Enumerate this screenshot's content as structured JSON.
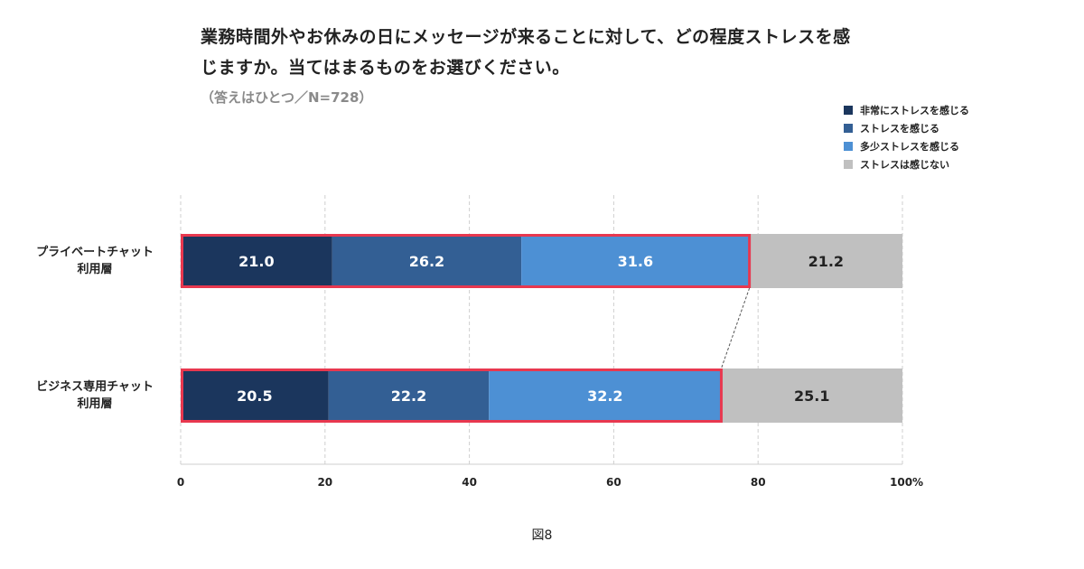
{
  "title_lines": [
    "業務時間外やお休みの日にメッセージが来ることに対して、どの程度ストレスを感",
    "じますか。当てはまるものをお選びください。"
  ],
  "note": "（答えはひとつ／N=728）",
  "figure_label": "図8",
  "colors": {
    "very": "#1b365d",
    "stressed": "#335f94",
    "somewhat": "#4d90d4",
    "none": "#c0c0c0",
    "highlight": "#e8384f"
  },
  "chart_data": {
    "type": "bar",
    "orientation": "horizontal",
    "stacked": true,
    "categories": [
      [
        "プライベートチャット",
        "利用層"
      ],
      [
        "ビジネス専用チャット",
        "利用層"
      ]
    ],
    "series": [
      {
        "name": "非常にストレスを感じる",
        "color": "#1b365d",
        "values": [
          21.0,
          20.5
        ]
      },
      {
        "name": "ストレスを感じる",
        "color": "#335f94",
        "values": [
          26.2,
          22.2
        ]
      },
      {
        "name": "多少ストレスを感じる",
        "color": "#4d90d4",
        "values": [
          31.6,
          32.2
        ]
      },
      {
        "name": "ストレスは感じない",
        "color": "#c0c0c0",
        "values": [
          21.2,
          25.1
        ]
      }
    ],
    "xlim": [
      0,
      100
    ],
    "xticks": [
      "0",
      "20",
      "40",
      "60",
      "80",
      "100%"
    ],
    "grid": true,
    "legend": "top-right",
    "highlight_series_count": 3
  }
}
